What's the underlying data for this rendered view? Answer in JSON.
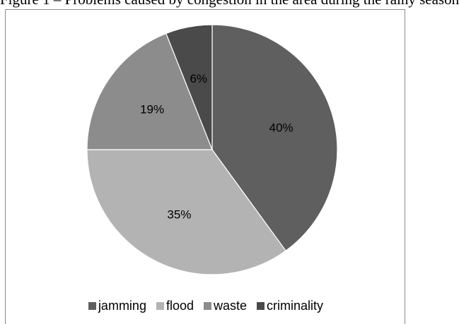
{
  "header_text": "Figure 1 – Problems caused by congestion in the area during the rainy season",
  "chart_data": {
    "type": "pie",
    "title": "",
    "categories": [
      "jamming",
      "flood",
      "waste",
      "criminality"
    ],
    "values": [
      40,
      35,
      19,
      6
    ],
    "data_labels": [
      "40%",
      "35%",
      "19%",
      "6%"
    ],
    "colors": [
      "#5f5f5f",
      "#b3b3b3",
      "#8c8c8c",
      "#4a4a4a"
    ],
    "legend_position": "bottom"
  }
}
